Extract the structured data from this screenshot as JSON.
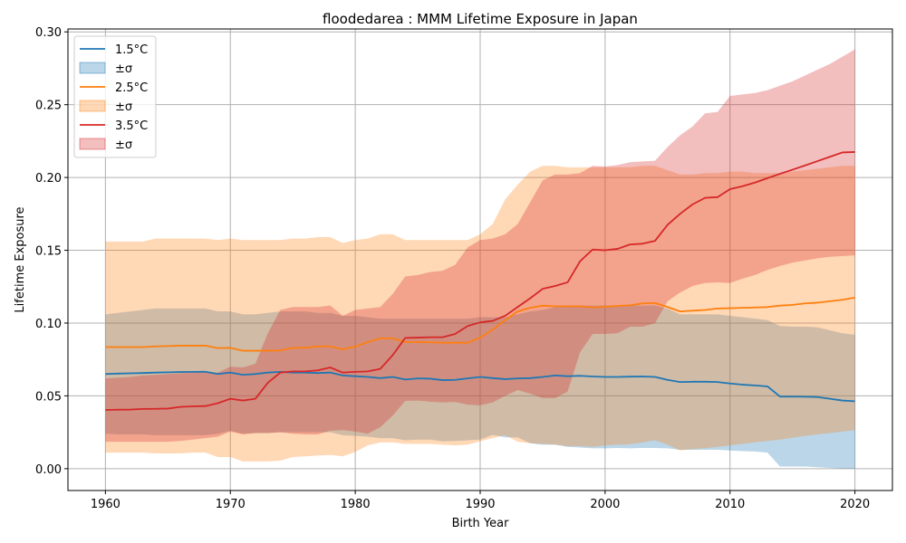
{
  "chart_data": {
    "type": "line",
    "title": "floodedarea : MMM Lifetime Exposure in Japan",
    "xlabel": "Birth Year",
    "ylabel": "Lifetime Exposure",
    "xlim": [
      1957,
      2023
    ],
    "ylim": [
      -0.015,
      0.302
    ],
    "xticks": [
      1960,
      1970,
      1980,
      1990,
      2000,
      2010,
      2020
    ],
    "yticks": [
      0.0,
      0.05,
      0.1,
      0.15,
      0.2,
      0.25,
      0.3
    ],
    "xtick_labels": [
      "1960",
      "1970",
      "1980",
      "1990",
      "2000",
      "2010",
      "2020"
    ],
    "ytick_labels": [
      "0.00",
      "0.05",
      "0.10",
      "0.15",
      "0.20",
      "0.25",
      "0.30"
    ],
    "grid": true,
    "legend_position": "top-left",
    "x": [
      1960,
      1961,
      1962,
      1963,
      1964,
      1965,
      1966,
      1967,
      1968,
      1969,
      1970,
      1971,
      1972,
      1973,
      1974,
      1975,
      1976,
      1977,
      1978,
      1979,
      1980,
      1981,
      1982,
      1983,
      1984,
      1985,
      1986,
      1987,
      1988,
      1989,
      1990,
      1991,
      1992,
      1993,
      1994,
      1995,
      1996,
      1997,
      1998,
      1999,
      2000,
      2001,
      2002,
      2003,
      2004,
      2005,
      2006,
      2007,
      2008,
      2009,
      2010,
      2011,
      2012,
      2013,
      2014,
      2015,
      2016,
      2017,
      2018,
      2019,
      2020
    ],
    "series": [
      {
        "name": "1.5°C",
        "band_label": "±σ",
        "color": "#1f77b4",
        "band_color": "#1f77b4",
        "band_opacity": 0.3,
        "values": [
          0.065,
          0.0653,
          0.0655,
          0.0657,
          0.066,
          0.0662,
          0.0664,
          0.0665,
          0.0666,
          0.065,
          0.066,
          0.0645,
          0.065,
          0.066,
          0.0665,
          0.066,
          0.066,
          0.0657,
          0.066,
          0.064,
          0.0635,
          0.063,
          0.0622,
          0.063,
          0.0612,
          0.062,
          0.0618,
          0.0608,
          0.061,
          0.062,
          0.063,
          0.0622,
          0.0615,
          0.062,
          0.0622,
          0.063,
          0.064,
          0.0635,
          0.0638,
          0.0633,
          0.063,
          0.063,
          0.0632,
          0.0633,
          0.063,
          0.061,
          0.0595,
          0.0597,
          0.0597,
          0.0595,
          0.0585,
          0.0577,
          0.0572,
          0.0565,
          0.0495,
          0.0495,
          0.0494,
          0.0492,
          0.048,
          0.0468,
          0.0463
        ],
        "upper": [
          0.106,
          0.107,
          0.108,
          0.109,
          0.11,
          0.11,
          0.11,
          0.11,
          0.11,
          0.108,
          0.108,
          0.106,
          0.106,
          0.107,
          0.108,
          0.108,
          0.108,
          0.107,
          0.107,
          0.105,
          0.105,
          0.104,
          0.103,
          0.103,
          0.103,
          0.103,
          0.103,
          0.103,
          0.103,
          0.103,
          0.104,
          0.104,
          0.104,
          0.106,
          0.108,
          0.109,
          0.111,
          0.112,
          0.112,
          0.112,
          0.112,
          0.112,
          0.112,
          0.112,
          0.112,
          0.11,
          0.106,
          0.106,
          0.106,
          0.106,
          0.105,
          0.104,
          0.103,
          0.102,
          0.098,
          0.0975,
          0.0975,
          0.097,
          0.095,
          0.093,
          0.092
        ],
        "lower": [
          0.024,
          0.0235,
          0.0235,
          0.0235,
          0.023,
          0.023,
          0.023,
          0.023,
          0.023,
          0.024,
          0.026,
          0.024,
          0.0245,
          0.0245,
          0.025,
          0.025,
          0.025,
          0.025,
          0.025,
          0.023,
          0.0225,
          0.022,
          0.021,
          0.021,
          0.0195,
          0.02,
          0.02,
          0.0188,
          0.019,
          0.0195,
          0.02,
          0.0232,
          0.0215,
          0.0215,
          0.0175,
          0.0165,
          0.0165,
          0.015,
          0.0145,
          0.014,
          0.014,
          0.0142,
          0.014,
          0.0142,
          0.0142,
          0.014,
          0.013,
          0.013,
          0.013,
          0.013,
          0.0125,
          0.012,
          0.0118,
          0.011,
          0.0015,
          0.0015,
          0.0015,
          0.001,
          0.0005,
          0.0,
          0.0
        ]
      },
      {
        "name": "2.5°C",
        "band_label": "±σ",
        "color": "#ff7f0e",
        "band_color": "#ff7f0e",
        "band_opacity": 0.3,
        "values": [
          0.0835,
          0.0835,
          0.0835,
          0.0835,
          0.084,
          0.0842,
          0.0845,
          0.0845,
          0.0845,
          0.0828,
          0.083,
          0.081,
          0.081,
          0.081,
          0.0812,
          0.083,
          0.083,
          0.084,
          0.084,
          0.082,
          0.0838,
          0.087,
          0.0895,
          0.0895,
          0.087,
          0.087,
          0.0868,
          0.0865,
          0.0865,
          0.0865,
          0.09,
          0.0955,
          0.102,
          0.108,
          0.1105,
          0.112,
          0.1115,
          0.1115,
          0.1115,
          0.1108,
          0.1112,
          0.1118,
          0.1122,
          0.1135,
          0.1138,
          0.111,
          0.108,
          0.1085,
          0.109,
          0.11,
          0.1102,
          0.1105,
          0.1107,
          0.111,
          0.112,
          0.1125,
          0.1135,
          0.114,
          0.115,
          0.116,
          0.1175
        ],
        "upper": [
          0.156,
          0.156,
          0.156,
          0.156,
          0.158,
          0.158,
          0.158,
          0.158,
          0.158,
          0.157,
          0.158,
          0.157,
          0.157,
          0.157,
          0.157,
          0.158,
          0.158,
          0.159,
          0.159,
          0.155,
          0.157,
          0.158,
          0.161,
          0.161,
          0.157,
          0.157,
          0.157,
          0.157,
          0.157,
          0.157,
          0.161,
          0.168,
          0.185,
          0.195,
          0.204,
          0.208,
          0.208,
          0.207,
          0.207,
          0.207,
          0.207,
          0.207,
          0.207,
          0.208,
          0.208,
          0.205,
          0.202,
          0.202,
          0.203,
          0.203,
          0.204,
          0.204,
          0.203,
          0.203,
          0.203,
          0.204,
          0.205,
          0.206,
          0.207,
          0.208,
          0.208
        ],
        "lower": [
          0.011,
          0.011,
          0.011,
          0.011,
          0.0105,
          0.0105,
          0.0105,
          0.011,
          0.011,
          0.008,
          0.008,
          0.005,
          0.005,
          0.005,
          0.0055,
          0.008,
          0.0085,
          0.009,
          0.0095,
          0.0085,
          0.0115,
          0.016,
          0.018,
          0.018,
          0.017,
          0.017,
          0.017,
          0.0165,
          0.016,
          0.0165,
          0.0188,
          0.021,
          0.023,
          0.0185,
          0.0175,
          0.017,
          0.0165,
          0.0155,
          0.0155,
          0.015,
          0.016,
          0.0165,
          0.0168,
          0.018,
          0.0195,
          0.0165,
          0.0125,
          0.0135,
          0.014,
          0.015,
          0.016,
          0.017,
          0.0182,
          0.019,
          0.02,
          0.0213,
          0.0225,
          0.0235,
          0.0245,
          0.0255,
          0.0265
        ]
      },
      {
        "name": "3.5°C",
        "band_label": "±σ",
        "color": "#d62728",
        "band_color": "#d62728",
        "band_opacity": 0.3,
        "values": [
          0.0403,
          0.0405,
          0.0406,
          0.041,
          0.0411,
          0.0413,
          0.0424,
          0.0428,
          0.043,
          0.045,
          0.048,
          0.0468,
          0.048,
          0.059,
          0.066,
          0.0668,
          0.0668,
          0.0675,
          0.0695,
          0.066,
          0.0665,
          0.0668,
          0.0685,
          0.078,
          0.0898,
          0.09,
          0.0903,
          0.0903,
          0.0925,
          0.098,
          0.1005,
          0.1015,
          0.105,
          0.111,
          0.117,
          0.1235,
          0.1255,
          0.128,
          0.1425,
          0.1505,
          0.15,
          0.151,
          0.154,
          0.1545,
          0.1565,
          0.1675,
          0.175,
          0.1815,
          0.186,
          0.1865,
          0.192,
          0.194,
          0.1965,
          0.1995,
          0.2025,
          0.2053,
          0.2082,
          0.2112,
          0.2142,
          0.2172,
          0.2175
        ],
        "upper": [
          0.062,
          0.0625,
          0.063,
          0.064,
          0.0645,
          0.065,
          0.0655,
          0.066,
          0.0665,
          0.066,
          0.07,
          0.0695,
          0.072,
          0.093,
          0.109,
          0.111,
          0.111,
          0.111,
          0.112,
          0.105,
          0.109,
          0.11,
          0.111,
          0.12,
          0.132,
          0.133,
          0.135,
          0.136,
          0.14,
          0.152,
          0.157,
          0.158,
          0.161,
          0.168,
          0.183,
          0.198,
          0.202,
          0.202,
          0.203,
          0.208,
          0.2075,
          0.2085,
          0.2105,
          0.211,
          0.2115,
          0.221,
          0.229,
          0.235,
          0.244,
          0.245,
          0.256,
          0.257,
          0.258,
          0.26,
          0.263,
          0.266,
          0.27,
          0.274,
          0.278,
          0.283,
          0.288
        ],
        "lower": [
          0.0185,
          0.0185,
          0.0185,
          0.0185,
          0.0185,
          0.0185,
          0.019,
          0.02,
          0.021,
          0.022,
          0.0255,
          0.0235,
          0.0245,
          0.0245,
          0.025,
          0.024,
          0.0235,
          0.0235,
          0.026,
          0.0265,
          0.0255,
          0.024,
          0.0285,
          0.0365,
          0.0465,
          0.0468,
          0.046,
          0.0455,
          0.0458,
          0.044,
          0.0435,
          0.0455,
          0.05,
          0.054,
          0.0515,
          0.0485,
          0.0485,
          0.053,
          0.08,
          0.0925,
          0.0925,
          0.093,
          0.0975,
          0.0975,
          0.1,
          0.115,
          0.121,
          0.1255,
          0.1275,
          0.128,
          0.1275,
          0.1305,
          0.133,
          0.1365,
          0.1392,
          0.1415,
          0.143,
          0.1445,
          0.1455,
          0.146,
          0.1465
        ]
      }
    ]
  }
}
